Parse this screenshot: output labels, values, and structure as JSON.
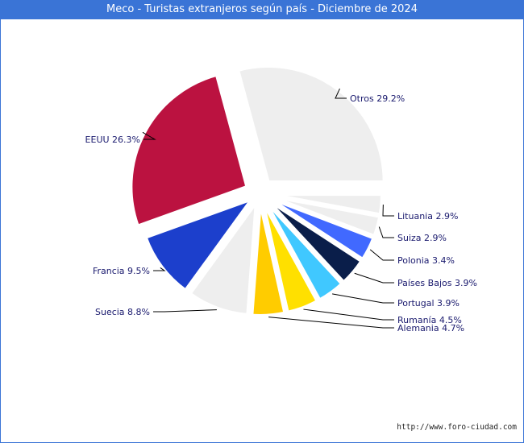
{
  "chart_data": {
    "type": "pie",
    "title": "Meco - Turistas extranjeros según país - Diciembre de 2024",
    "slices": [
      {
        "name": "Otros",
        "label": "Otros 29.2%",
        "value": 29.2,
        "color": "#eeeeee"
      },
      {
        "name": "Lituania",
        "label": "Lituania 2.9%",
        "value": 2.9,
        "color": "#eeeeee"
      },
      {
        "name": "Suiza",
        "label": "Suiza 2.9%",
        "value": 2.9,
        "color": "#eeeeee"
      },
      {
        "name": "Polonia",
        "label": "Polonia 3.4%",
        "value": 3.4,
        "color": "#4169ff"
      },
      {
        "name": "Países Bajos",
        "label": "Países Bajos 3.9%",
        "value": 3.9,
        "color": "#0a1e4a"
      },
      {
        "name": "Portugal",
        "label": "Portugal 3.9%",
        "value": 3.9,
        "color": "#40c8ff"
      },
      {
        "name": "Rumanía",
        "label": "Rumanía 4.5%",
        "value": 4.5,
        "color": "#ffe000"
      },
      {
        "name": "Alemania",
        "label": "Alemania 4.7%",
        "value": 4.7,
        "color": "#ffcc00"
      },
      {
        "name": "Suecia",
        "label": "Suecia 8.8%",
        "value": 8.8,
        "color": "#eeeeee"
      },
      {
        "name": "Francia",
        "label": "Francia 9.5%",
        "value": 9.5,
        "color": "#1c3fcc"
      },
      {
        "name": "EEUU",
        "label": "EEUU 26.3%",
        "value": 26.3,
        "color": "#bb1240"
      }
    ]
  },
  "footer": {
    "source_url": "http://www.foro-ciudad.com"
  }
}
